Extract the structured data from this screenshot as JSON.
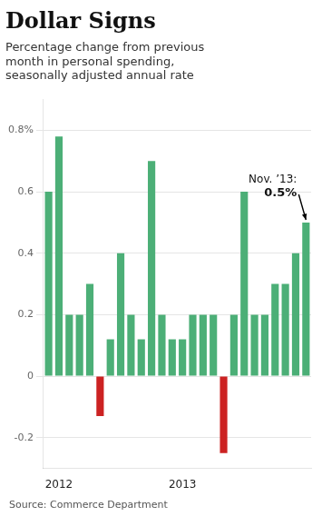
{
  "chart_data": {
    "type": "bar",
    "title": "Dollar Signs",
    "subtitle": "Percentage change from previous\nmonth in personal spending,\nseasonally adjusted annual rate",
    "source": "Source: Commerce Department",
    "categories": [
      null,
      "2012",
      null,
      null,
      null,
      null,
      null,
      null,
      null,
      null,
      null,
      null,
      null,
      "2013",
      null,
      null,
      null,
      null,
      null,
      null,
      null,
      null,
      null,
      null,
      null,
      null
    ],
    "values": [
      0.6,
      0.78,
      0.2,
      0.2,
      0.3,
      -0.13,
      0.12,
      0.4,
      0.2,
      0.12,
      0.7,
      0.2,
      0.12,
      0.12,
      0.2,
      0.2,
      0.2,
      -0.25,
      0.2,
      0.6,
      0.2,
      0.2,
      0.3,
      0.3,
      0.4,
      0.5
    ],
    "colors": [
      "#4caf77",
      "#4caf77",
      "#4caf77",
      "#4caf77",
      "#4caf77",
      "#cc2222",
      "#4caf77",
      "#4caf77",
      "#4caf77",
      "#4caf77",
      "#4caf77",
      "#4caf77",
      "#4caf77",
      "#4caf77",
      "#4caf77",
      "#4caf77",
      "#4caf77",
      "#cc2222",
      "#4caf77",
      "#4caf77",
      "#4caf77",
      "#4caf77",
      "#4caf77",
      "#4caf77",
      "#4caf77",
      "#4caf77"
    ],
    "ylim": [
      -0.3,
      0.9
    ],
    "yticks": [
      -0.2,
      0,
      0.2,
      0.4,
      0.6,
      {
        "value": 0.8,
        "label": "0.8%"
      }
    ],
    "grid": true,
    "annotation": {
      "text": "Nov. ’13:",
      "value": 0.5,
      "value_label": "0.5%"
    }
  }
}
